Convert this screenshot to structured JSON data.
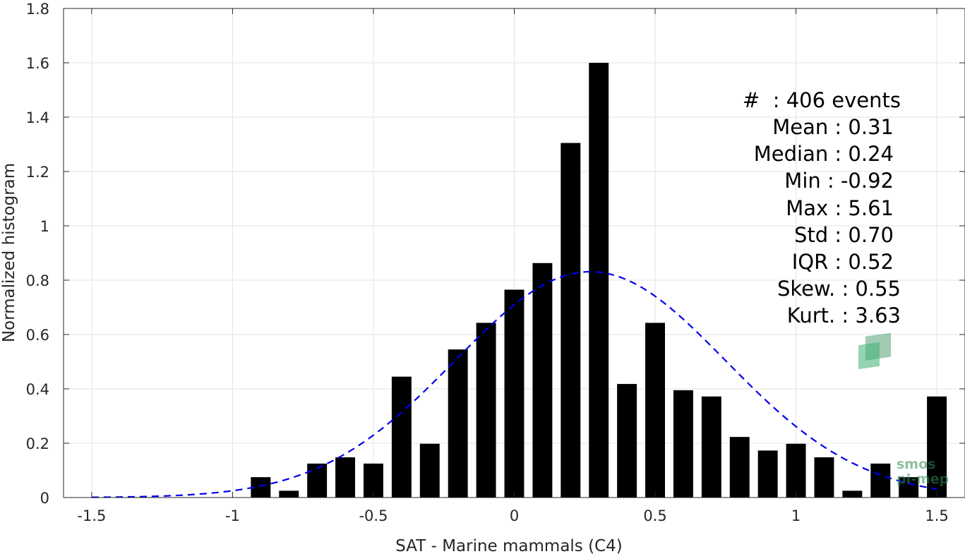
{
  "chart_data": {
    "type": "bar",
    "xlabel": "SAT - Marine mammals (C4)",
    "ylabel": "Normalized histogram",
    "xlim": [
      -1.6,
      1.6
    ],
    "ylim": [
      0,
      1.8
    ],
    "x_ticks": [
      -1.5,
      -1,
      -0.5,
      0,
      0.5,
      1,
      1.5
    ],
    "x_tick_labels": [
      "-1.5",
      "-1",
      "-0.5",
      "0",
      "0.5",
      "1",
      "1.5"
    ],
    "y_ticks": [
      0,
      0.2,
      0.4,
      0.6,
      0.8,
      1,
      1.2,
      1.4,
      1.6,
      1.8
    ],
    "y_tick_labels": [
      "0",
      "0.2",
      "0.4",
      "0.6",
      "0.8",
      "1",
      "1.2",
      "1.4",
      "1.6",
      "1.8"
    ],
    "grid": true,
    "bar_width": 0.07,
    "bar_color": "#000000",
    "bins": [
      {
        "x": -0.9,
        "value": 0.075
      },
      {
        "x": -0.8,
        "value": 0.025
      },
      {
        "x": -0.7,
        "value": 0.125
      },
      {
        "x": -0.6,
        "value": 0.148
      },
      {
        "x": -0.5,
        "value": 0.125
      },
      {
        "x": -0.4,
        "value": 0.445
      },
      {
        "x": -0.3,
        "value": 0.198
      },
      {
        "x": -0.2,
        "value": 0.545
      },
      {
        "x": -0.1,
        "value": 0.643
      },
      {
        "x": 0.0,
        "value": 0.765
      },
      {
        "x": 0.1,
        "value": 0.863
      },
      {
        "x": 0.2,
        "value": 1.305
      },
      {
        "x": 0.3,
        "value": 1.6
      },
      {
        "x": 0.4,
        "value": 0.418
      },
      {
        "x": 0.5,
        "value": 0.643
      },
      {
        "x": 0.6,
        "value": 0.395
      },
      {
        "x": 0.7,
        "value": 0.372
      },
      {
        "x": 0.8,
        "value": 0.223
      },
      {
        "x": 0.9,
        "value": 0.173
      },
      {
        "x": 1.0,
        "value": 0.198
      },
      {
        "x": 1.1,
        "value": 0.148
      },
      {
        "x": 1.2,
        "value": 0.025
      },
      {
        "x": 1.3,
        "value": 0.125
      },
      {
        "x": 1.4,
        "value": 0.075
      },
      {
        "x": 1.5,
        "value": 0.372
      }
    ],
    "fit_curve": {
      "type": "gaussian",
      "style": "dashed",
      "color": "#0000ee",
      "mean": 0.27,
      "std": 0.48,
      "x_range": [
        -1.5,
        1.5
      ]
    }
  },
  "stats": [
    {
      "label": "#  : 406 events"
    },
    {
      "label": "Mean : 0.31"
    },
    {
      "label": "Median : 0.24"
    },
    {
      "label": "Min : -0.92"
    },
    {
      "label": "Max : 5.61"
    },
    {
      "label": "Std : 0.70"
    },
    {
      "label": "IQR : 0.52"
    },
    {
      "label": "Skew. : 0.55"
    },
    {
      "label": "Kurt. : 3.63"
    }
  ],
  "watermark": {
    "line1": "smos",
    "line2": "pi-mep"
  }
}
